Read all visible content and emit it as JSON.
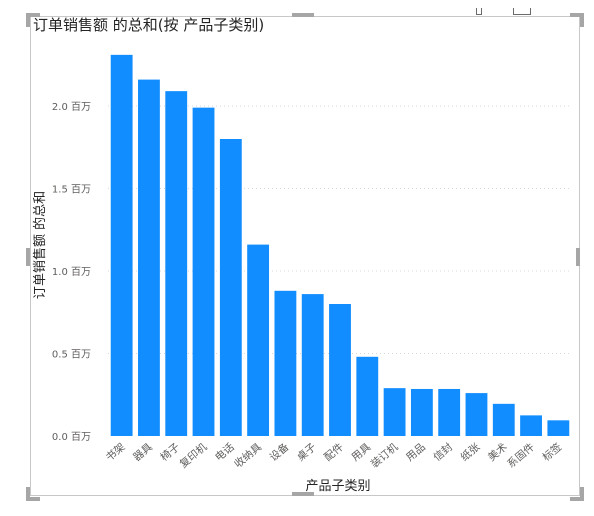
{
  "chart_data": {
    "type": "bar",
    "title": "订单销售额 的总和(按 产品子类别)",
    "xlabel": "产品子类别",
    "ylabel": "订单销售额 的总和",
    "ylim": [
      0,
      2400000
    ],
    "yticks": [
      0,
      500000,
      1000000,
      1500000,
      2000000
    ],
    "ytick_labels": [
      "0.0 百万",
      "0.5 百万",
      "1.0 百万",
      "1.5 百万",
      "2.0 百万"
    ],
    "grid": true,
    "categories": [
      "书架",
      "器具",
      "椅子",
      "复印机",
      "电话",
      "收纳具",
      "设备",
      "桌子",
      "配件",
      "用具",
      "装订机",
      "用品",
      "信封",
      "纸张",
      "美术",
      "系固件",
      "标签"
    ],
    "values": [
      2310000,
      2160000,
      2090000,
      1990000,
      1800000,
      1160000,
      880000,
      860000,
      800000,
      480000,
      290000,
      285000,
      285000,
      260000,
      195000,
      125000,
      95000
    ],
    "bar_color": "#118DFF"
  }
}
